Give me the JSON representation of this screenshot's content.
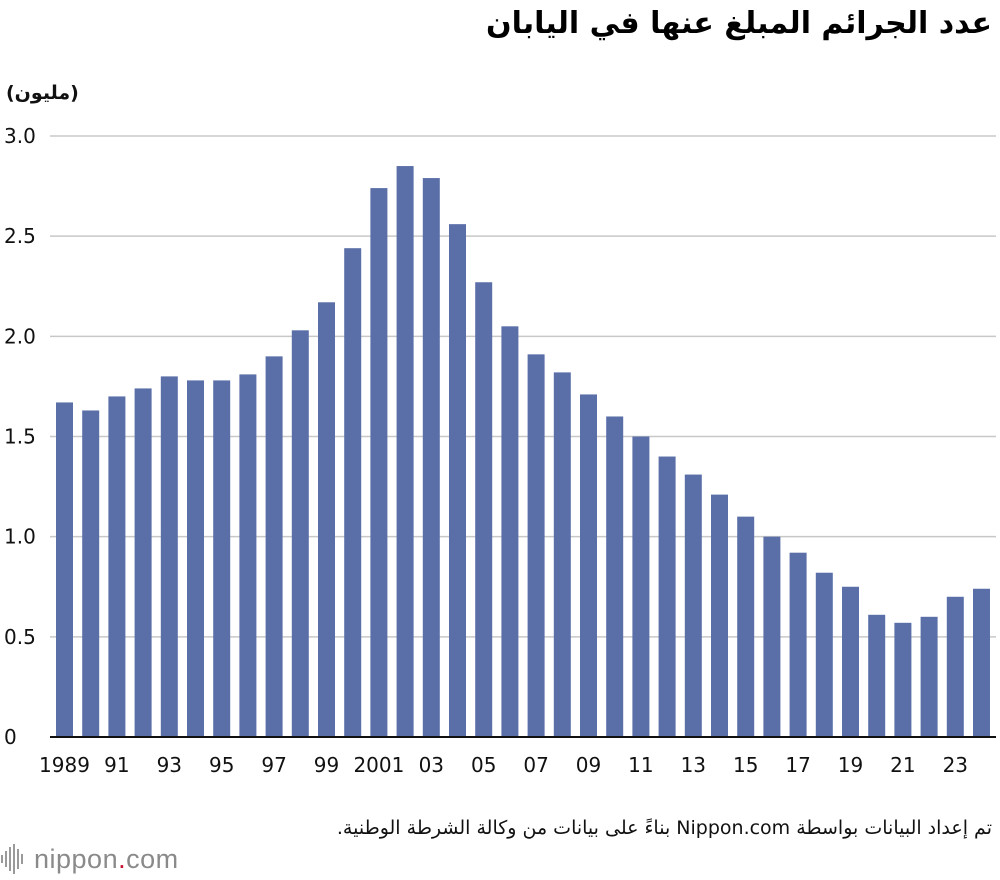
{
  "title": "عدد الجرائم المبلغ عنها في اليابان",
  "unit_label": "(مليون)",
  "source_note": "تم إعداد البيانات بواسطة Nippon.com بناءً على بيانات من وكالة الشرطة الوطنية.",
  "logo": {
    "name": "nippon",
    "dot": ".",
    "suffix": "com",
    "icon": "nippon-sound-wave-icon"
  },
  "colors": {
    "bar": "#5a6fa8",
    "grid": "#c8c8c8",
    "axis": "#111111"
  },
  "chart_data": {
    "type": "bar",
    "title": "عدد الجرائم المبلغ عنها في اليابان",
    "ylabel": "(مليون)",
    "xlabel": "",
    "ylim": [
      0,
      3.0
    ],
    "grid": true,
    "yticks": [
      0,
      0.5,
      1.0,
      1.5,
      2.0,
      2.5,
      3.0
    ],
    "ytick_labels": [
      "0",
      "0.5",
      "1.0",
      "1.5",
      "2.0",
      "2.5",
      "3.0"
    ],
    "categories": [
      1989,
      1990,
      1991,
      1992,
      1993,
      1994,
      1995,
      1996,
      1997,
      1998,
      1999,
      2000,
      2001,
      2002,
      2003,
      2004,
      2005,
      2006,
      2007,
      2008,
      2009,
      2010,
      2011,
      2012,
      2013,
      2014,
      2015,
      2016,
      2017,
      2018,
      2019,
      2020,
      2021,
      2022,
      2023,
      2024
    ],
    "x_tick_labels": [
      "1989",
      "",
      "91",
      "",
      "93",
      "",
      "95",
      "",
      "97",
      "",
      "99",
      "",
      "2001",
      "",
      "03",
      "",
      "05",
      "",
      "07",
      "",
      "09",
      "",
      "11",
      "",
      "13",
      "",
      "15",
      "",
      "17",
      "",
      "19",
      "",
      "21",
      "",
      "23",
      ""
    ],
    "values": [
      1.67,
      1.63,
      1.7,
      1.74,
      1.8,
      1.78,
      1.78,
      1.81,
      1.9,
      2.03,
      2.17,
      2.44,
      2.74,
      2.85,
      2.79,
      2.56,
      2.27,
      2.05,
      1.91,
      1.82,
      1.71,
      1.6,
      1.5,
      1.4,
      1.31,
      1.21,
      1.1,
      1.0,
      0.92,
      0.82,
      0.75,
      0.61,
      0.57,
      0.6,
      0.7,
      0.74
    ]
  }
}
